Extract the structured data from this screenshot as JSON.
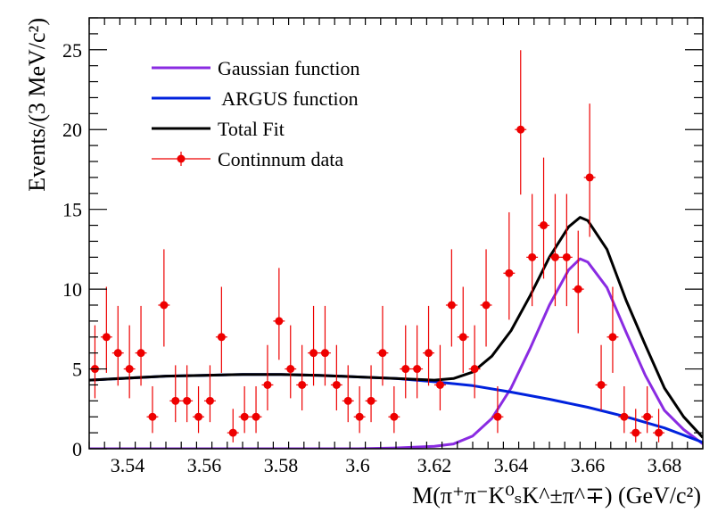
{
  "chart_data": {
    "type": "scatter",
    "title": "",
    "xlabel": "M(π⁺π⁻K⁰ₛK^±π^∓)  (GeV/c²)",
    "ylabel": "Events/(3 MeV/c²)",
    "xlim": [
      3.53,
      3.69
    ],
    "ylim": [
      0,
      27
    ],
    "x_ticks": [
      3.54,
      3.56,
      3.58,
      3.6,
      3.62,
      3.64,
      3.66,
      3.68
    ],
    "x_tick_labels": [
      "3.54",
      "3.56",
      "3.58",
      "3.6",
      "3.62",
      "3.64",
      "3.66",
      "3.68"
    ],
    "y_ticks": [
      0,
      5,
      10,
      15,
      20,
      25
    ],
    "y_tick_labels": [
      "0",
      "5",
      "10",
      "15",
      "20",
      "25"
    ],
    "grid": false,
    "legend_position": "top-left",
    "legend": [
      {
        "label": "Gaussian function",
        "color": "#8a2be2",
        "style": "line"
      },
      {
        "label": " ARGUS function",
        "color": "#0022dd",
        "style": "line"
      },
      {
        "label": "Total Fit",
        "color": "#000000",
        "style": "line"
      },
      {
        "label": "Continnum data",
        "color": "#ee0000",
        "style": "marker"
      }
    ],
    "series": [
      {
        "name": "Continnum data",
        "kind": "points",
        "color": "#ee0000",
        "x_err": 0.0015,
        "points": [
          {
            "x": 3.5315,
            "y": 5
          },
          {
            "x": 3.5345,
            "y": 7
          },
          {
            "x": 3.5375,
            "y": 6
          },
          {
            "x": 3.5405,
            "y": 5
          },
          {
            "x": 3.5435,
            "y": 6
          },
          {
            "x": 3.5465,
            "y": 2
          },
          {
            "x": 3.5495,
            "y": 9
          },
          {
            "x": 3.5525,
            "y": 3
          },
          {
            "x": 3.5555,
            "y": 3
          },
          {
            "x": 3.5585,
            "y": 2
          },
          {
            "x": 3.5615,
            "y": 3
          },
          {
            "x": 3.5645,
            "y": 7
          },
          {
            "x": 3.5675,
            "y": 1
          },
          {
            "x": 3.5705,
            "y": 2
          },
          {
            "x": 3.5735,
            "y": 2
          },
          {
            "x": 3.5765,
            "y": 4
          },
          {
            "x": 3.5795,
            "y": 8
          },
          {
            "x": 3.5825,
            "y": 5
          },
          {
            "x": 3.5855,
            "y": 4
          },
          {
            "x": 3.5885,
            "y": 6
          },
          {
            "x": 3.5915,
            "y": 6
          },
          {
            "x": 3.5945,
            "y": 4
          },
          {
            "x": 3.5975,
            "y": 3
          },
          {
            "x": 3.6005,
            "y": 2
          },
          {
            "x": 3.6035,
            "y": 3
          },
          {
            "x": 3.6065,
            "y": 6
          },
          {
            "x": 3.6095,
            "y": 2
          },
          {
            "x": 3.6125,
            "y": 5
          },
          {
            "x": 3.6155,
            "y": 5
          },
          {
            "x": 3.6185,
            "y": 6
          },
          {
            "x": 3.6215,
            "y": 4
          },
          {
            "x": 3.6245,
            "y": 9
          },
          {
            "x": 3.6275,
            "y": 7
          },
          {
            "x": 3.6305,
            "y": 5
          },
          {
            "x": 3.6335,
            "y": 9
          },
          {
            "x": 3.6365,
            "y": 2
          },
          {
            "x": 3.6395,
            "y": 11
          },
          {
            "x": 3.6425,
            "y": 20
          },
          {
            "x": 3.6455,
            "y": 12
          },
          {
            "x": 3.6485,
            "y": 14
          },
          {
            "x": 3.6515,
            "y": 12
          },
          {
            "x": 3.6545,
            "y": 12
          },
          {
            "x": 3.6575,
            "y": 10
          },
          {
            "x": 3.6605,
            "y": 17
          },
          {
            "x": 3.6635,
            "y": 4
          },
          {
            "x": 3.6665,
            "y": 7
          },
          {
            "x": 3.6695,
            "y": 2
          },
          {
            "x": 3.6725,
            "y": 1
          },
          {
            "x": 3.6755,
            "y": 2
          },
          {
            "x": 3.6785,
            "y": 1
          }
        ]
      },
      {
        "name": "Gaussian function",
        "kind": "curve",
        "color": "#8a2be2",
        "points": [
          {
            "x": 3.53,
            "y": 0
          },
          {
            "x": 3.6,
            "y": 0
          },
          {
            "x": 3.61,
            "y": 0.05
          },
          {
            "x": 3.62,
            "y": 0.15
          },
          {
            "x": 3.625,
            "y": 0.3
          },
          {
            "x": 3.63,
            "y": 0.8
          },
          {
            "x": 3.635,
            "y": 1.9
          },
          {
            "x": 3.64,
            "y": 3.8
          },
          {
            "x": 3.645,
            "y": 6.3
          },
          {
            "x": 3.65,
            "y": 9.0
          },
          {
            "x": 3.655,
            "y": 11.2
          },
          {
            "x": 3.658,
            "y": 11.9
          },
          {
            "x": 3.66,
            "y": 11.7
          },
          {
            "x": 3.665,
            "y": 10.1
          },
          {
            "x": 3.67,
            "y": 7.3
          },
          {
            "x": 3.675,
            "y": 4.6
          },
          {
            "x": 3.68,
            "y": 2.4
          },
          {
            "x": 3.685,
            "y": 1.2
          },
          {
            "x": 3.69,
            "y": 0.3
          }
        ]
      },
      {
        "name": "ARGUS function",
        "kind": "curve",
        "color": "#0022dd",
        "points": [
          {
            "x": 3.53,
            "y": 4.3
          },
          {
            "x": 3.55,
            "y": 4.55
          },
          {
            "x": 3.56,
            "y": 4.6
          },
          {
            "x": 3.57,
            "y": 4.65
          },
          {
            "x": 3.58,
            "y": 4.65
          },
          {
            "x": 3.59,
            "y": 4.6
          },
          {
            "x": 3.6,
            "y": 4.5
          },
          {
            "x": 3.61,
            "y": 4.4
          },
          {
            "x": 3.62,
            "y": 4.2
          },
          {
            "x": 3.63,
            "y": 3.95
          },
          {
            "x": 3.64,
            "y": 3.55
          },
          {
            "x": 3.65,
            "y": 3.1
          },
          {
            "x": 3.66,
            "y": 2.6
          },
          {
            "x": 3.67,
            "y": 2.0
          },
          {
            "x": 3.68,
            "y": 1.3
          },
          {
            "x": 3.69,
            "y": 0.4
          }
        ]
      },
      {
        "name": "Total Fit",
        "kind": "curve",
        "color": "#000000",
        "points": [
          {
            "x": 3.53,
            "y": 4.3
          },
          {
            "x": 3.55,
            "y": 4.55
          },
          {
            "x": 3.56,
            "y": 4.6
          },
          {
            "x": 3.57,
            "y": 4.65
          },
          {
            "x": 3.58,
            "y": 4.65
          },
          {
            "x": 3.59,
            "y": 4.6
          },
          {
            "x": 3.6,
            "y": 4.5
          },
          {
            "x": 3.61,
            "y": 4.4
          },
          {
            "x": 3.62,
            "y": 4.3
          },
          {
            "x": 3.625,
            "y": 4.4
          },
          {
            "x": 3.63,
            "y": 4.8
          },
          {
            "x": 3.635,
            "y": 5.8
          },
          {
            "x": 3.64,
            "y": 7.4
          },
          {
            "x": 3.645,
            "y": 9.6
          },
          {
            "x": 3.65,
            "y": 12.0
          },
          {
            "x": 3.655,
            "y": 13.9
          },
          {
            "x": 3.658,
            "y": 14.5
          },
          {
            "x": 3.66,
            "y": 14.3
          },
          {
            "x": 3.665,
            "y": 12.5
          },
          {
            "x": 3.67,
            "y": 9.3
          },
          {
            "x": 3.675,
            "y": 6.5
          },
          {
            "x": 3.68,
            "y": 3.8
          },
          {
            "x": 3.685,
            "y": 2.0
          },
          {
            "x": 3.69,
            "y": 0.7
          }
        ]
      }
    ]
  }
}
